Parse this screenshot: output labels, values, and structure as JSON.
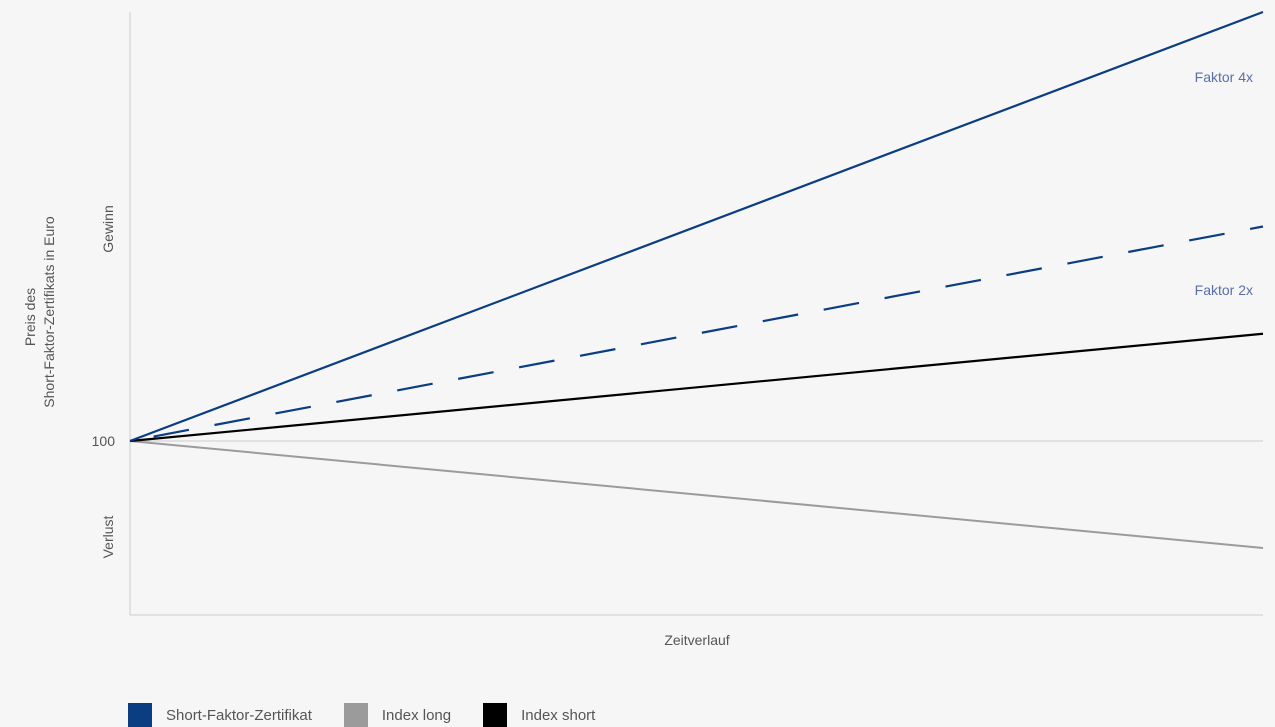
{
  "colors": {
    "background": "#f6f6f6",
    "blue": "#0a3d82",
    "grey": "#9b9b9b",
    "black": "#000000",
    "axis": "#cccccc",
    "label_text": "#555555",
    "factor_label": "#5a6fa8"
  },
  "chart_data": {
    "type": "line",
    "xlabel": "Zeitverlauf",
    "ylabel_lines": [
      "Preis des",
      "Short-Faktor-Zertifikats in Euro"
    ],
    "y_baseline_label": "100",
    "y_region_labels": {
      "upper": "Gewinn",
      "lower": "Verlust"
    },
    "x": [
      0,
      1
    ],
    "ylim": [
      -0.8,
      2.0
    ],
    "baseline": 0,
    "series": [
      {
        "key": "faktor4",
        "color": "blue",
        "style": "solid",
        "values": [
          0,
          2.0
        ],
        "label": "Faktor 4x"
      },
      {
        "key": "faktor2",
        "color": "blue",
        "style": "dashed",
        "values": [
          0,
          1.0
        ],
        "label": "Faktor 2x"
      },
      {
        "key": "index_short",
        "color": "black",
        "style": "solid",
        "values": [
          0,
          0.5
        ]
      },
      {
        "key": "index_long",
        "color": "grey",
        "style": "solid",
        "values": [
          0,
          -0.5
        ]
      }
    ],
    "legend": {
      "placement": "bottom-left",
      "items": [
        {
          "label": "Short-Faktor-Zertifikat",
          "color": "blue"
        },
        {
          "label": "Index long",
          "color": "grey"
        },
        {
          "label": "Index short",
          "color": "black"
        }
      ]
    }
  }
}
